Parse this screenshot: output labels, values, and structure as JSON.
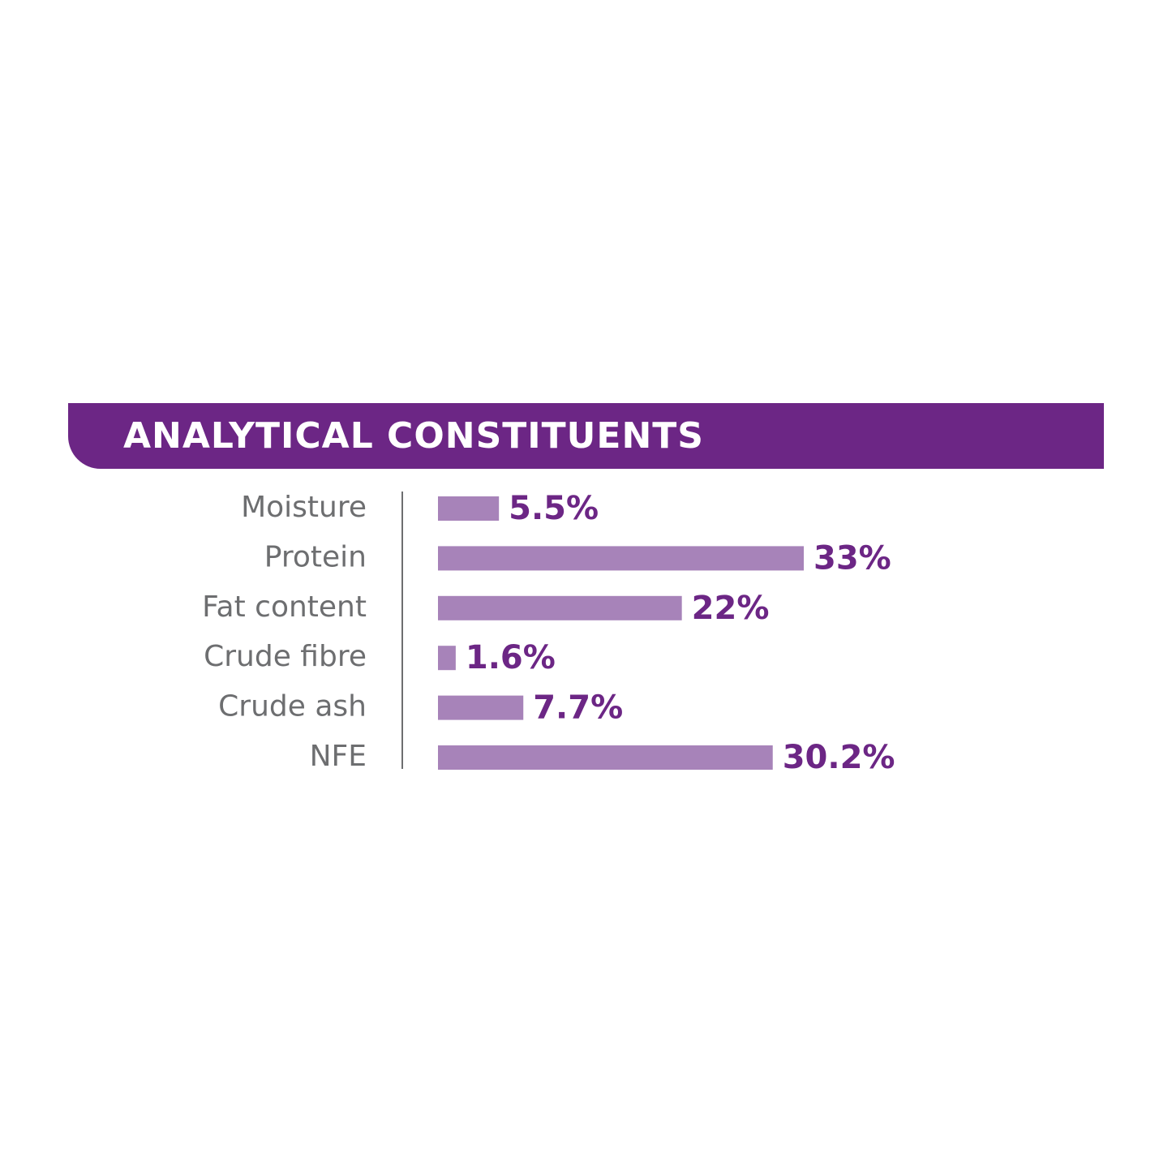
{
  "chart_data": {
    "type": "bar",
    "orientation": "horizontal",
    "title": "ANALYTICAL CONSTITUENTS",
    "categories": [
      "Moisture",
      "Protein",
      "Fat content",
      "Crude fibre",
      "Crude ash",
      "NFE"
    ],
    "values": [
      5.5,
      33,
      22,
      1.6,
      7.7,
      30.2
    ],
    "value_labels": [
      "5.5%",
      "33%",
      "22%",
      "1.6%",
      "7.7%",
      "30.2%"
    ],
    "color": "#a783b9",
    "label_color": "#6c2685",
    "header_color": "#6c2685"
  }
}
